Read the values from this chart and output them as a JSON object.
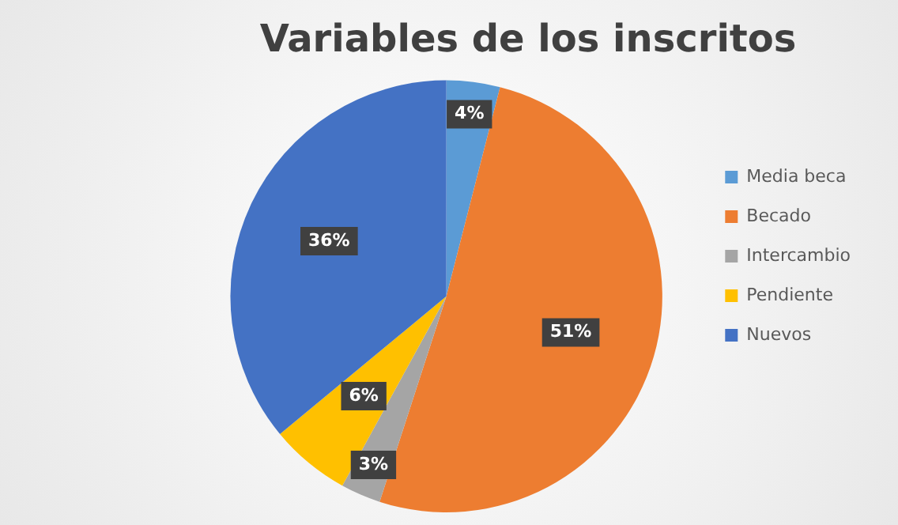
{
  "chart_data": {
    "type": "pie",
    "title": "Variables de los inscritos",
    "categories": [
      "Media beca",
      "Becado",
      "Intercambio",
      "Pendiente",
      "Nuevos"
    ],
    "values": [
      4,
      51,
      3,
      6,
      36
    ],
    "value_labels": [
      "4%",
      "51%",
      "3%",
      "6%",
      "36%"
    ],
    "colors": [
      "#5b9bd5",
      "#ed7d31",
      "#a5a5a5",
      "#ffc000",
      "#4472c4"
    ],
    "legend": "right"
  }
}
